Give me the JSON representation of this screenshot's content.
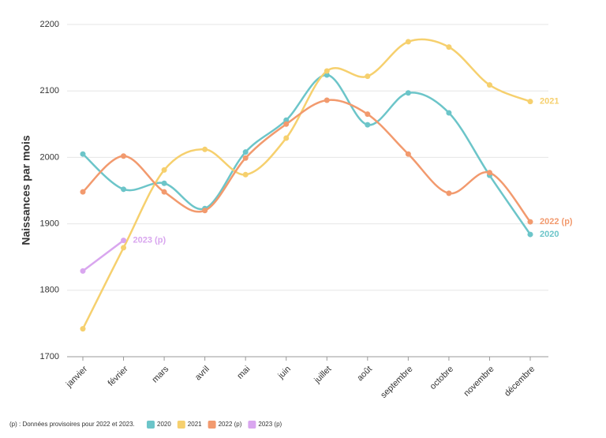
{
  "chart_data": {
    "type": "line",
    "y_label": "Naissances par mois",
    "note": "(p) : Données provisoires pour 2022 et 2023.",
    "categories": [
      "janvier",
      "février",
      "mars",
      "avril",
      "mai",
      "juin",
      "juillet",
      "août",
      "septembre",
      "octobre",
      "novembre",
      "décembre"
    ],
    "series": [
      {
        "name": "2020",
        "color": "#6cc5c9",
        "values": [
          2005,
          1952,
          1961,
          1923,
          2008,
          2056,
          2124,
          2049,
          2097,
          2067,
          1973,
          1884
        ]
      },
      {
        "name": "2021",
        "color": "#f6d06e",
        "values": [
          1742,
          1864,
          1981,
          2012,
          1974,
          2029,
          2130,
          2122,
          2174,
          2166,
          2109,
          2084
        ]
      },
      {
        "name": "2022 (p)",
        "color": "#f29a6e",
        "values": [
          1948,
          2002,
          1948,
          1920,
          1999,
          2050,
          2086,
          2065,
          2005,
          1946,
          1977,
          1903
        ]
      },
      {
        "name": "2023 (p)",
        "color": "#d9a6ef",
        "values": [
          1829,
          1875,
          null,
          null,
          null,
          null,
          null,
          null,
          null,
          null,
          null,
          null
        ]
      }
    ],
    "ylim": [
      1700,
      2200
    ],
    "yticks": [
      1700,
      1800,
      1900,
      2000,
      2100,
      2200
    ],
    "grid": true
  }
}
